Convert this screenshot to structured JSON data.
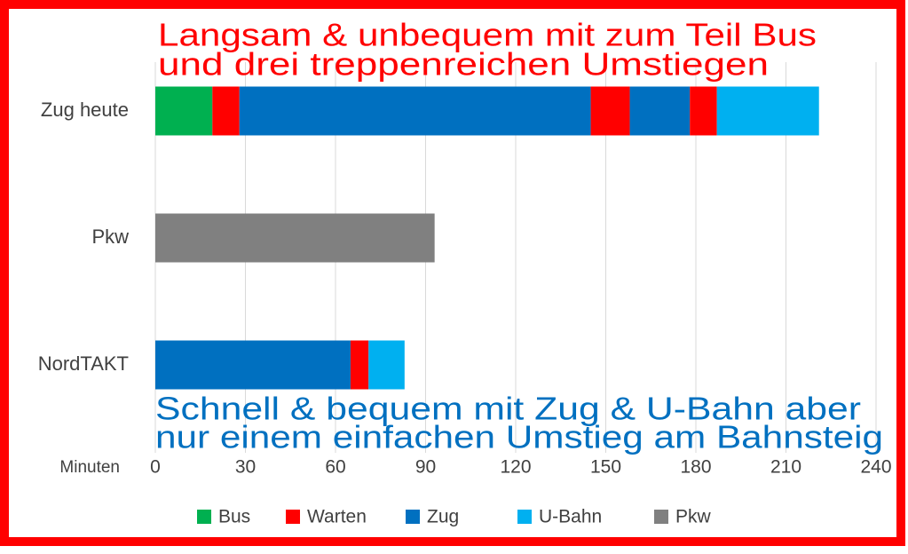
{
  "chart_data": {
    "type": "stacked-bar-horizontal",
    "categories": [
      "Zug heute",
      "Pkw",
      "NordTAKT"
    ],
    "series": [
      {
        "name": "Bus",
        "color": "#00b050"
      },
      {
        "name": "Warten",
        "color": "#ff0000"
      },
      {
        "name": "Zug",
        "color": "#0070c0"
      },
      {
        "name": "U-Bahn",
        "color": "#00b0f0"
      },
      {
        "name": "Pkw",
        "color": "#808080"
      }
    ],
    "stacks": [
      [
        {
          "series": 0,
          "value": 19
        },
        {
          "series": 1,
          "value": 9
        },
        {
          "series": 2,
          "value": 117
        },
        {
          "series": 1,
          "value": 13
        },
        {
          "series": 2,
          "value": 20
        },
        {
          "series": 1,
          "value": 9
        },
        {
          "series": 3,
          "value": 34
        }
      ],
      [
        {
          "series": 4,
          "value": 93
        }
      ],
      [
        {
          "series": 2,
          "value": 65
        },
        {
          "series": 1,
          "value": 6
        },
        {
          "series": 3,
          "value": 12
        }
      ]
    ],
    "xlabel": "Minuten",
    "xlim": [
      0,
      240
    ],
    "xticks": [
      0,
      30,
      60,
      90,
      120,
      150,
      180,
      210,
      240
    ],
    "grid": true,
    "legend": "bottom",
    "annotations": [
      {
        "lines": [
          "Langsam & unbequem mit zum Teil Bus",
          "und  drei treppenreichen Umstiegen"
        ],
        "color": "#ff0000"
      },
      {
        "lines": [
          "Schnell & bequem mit Zug & U-Bahn aber",
          "nur einem einfachen Umstieg am Bahnsteig"
        ],
        "color": "#0070c0"
      }
    ]
  }
}
